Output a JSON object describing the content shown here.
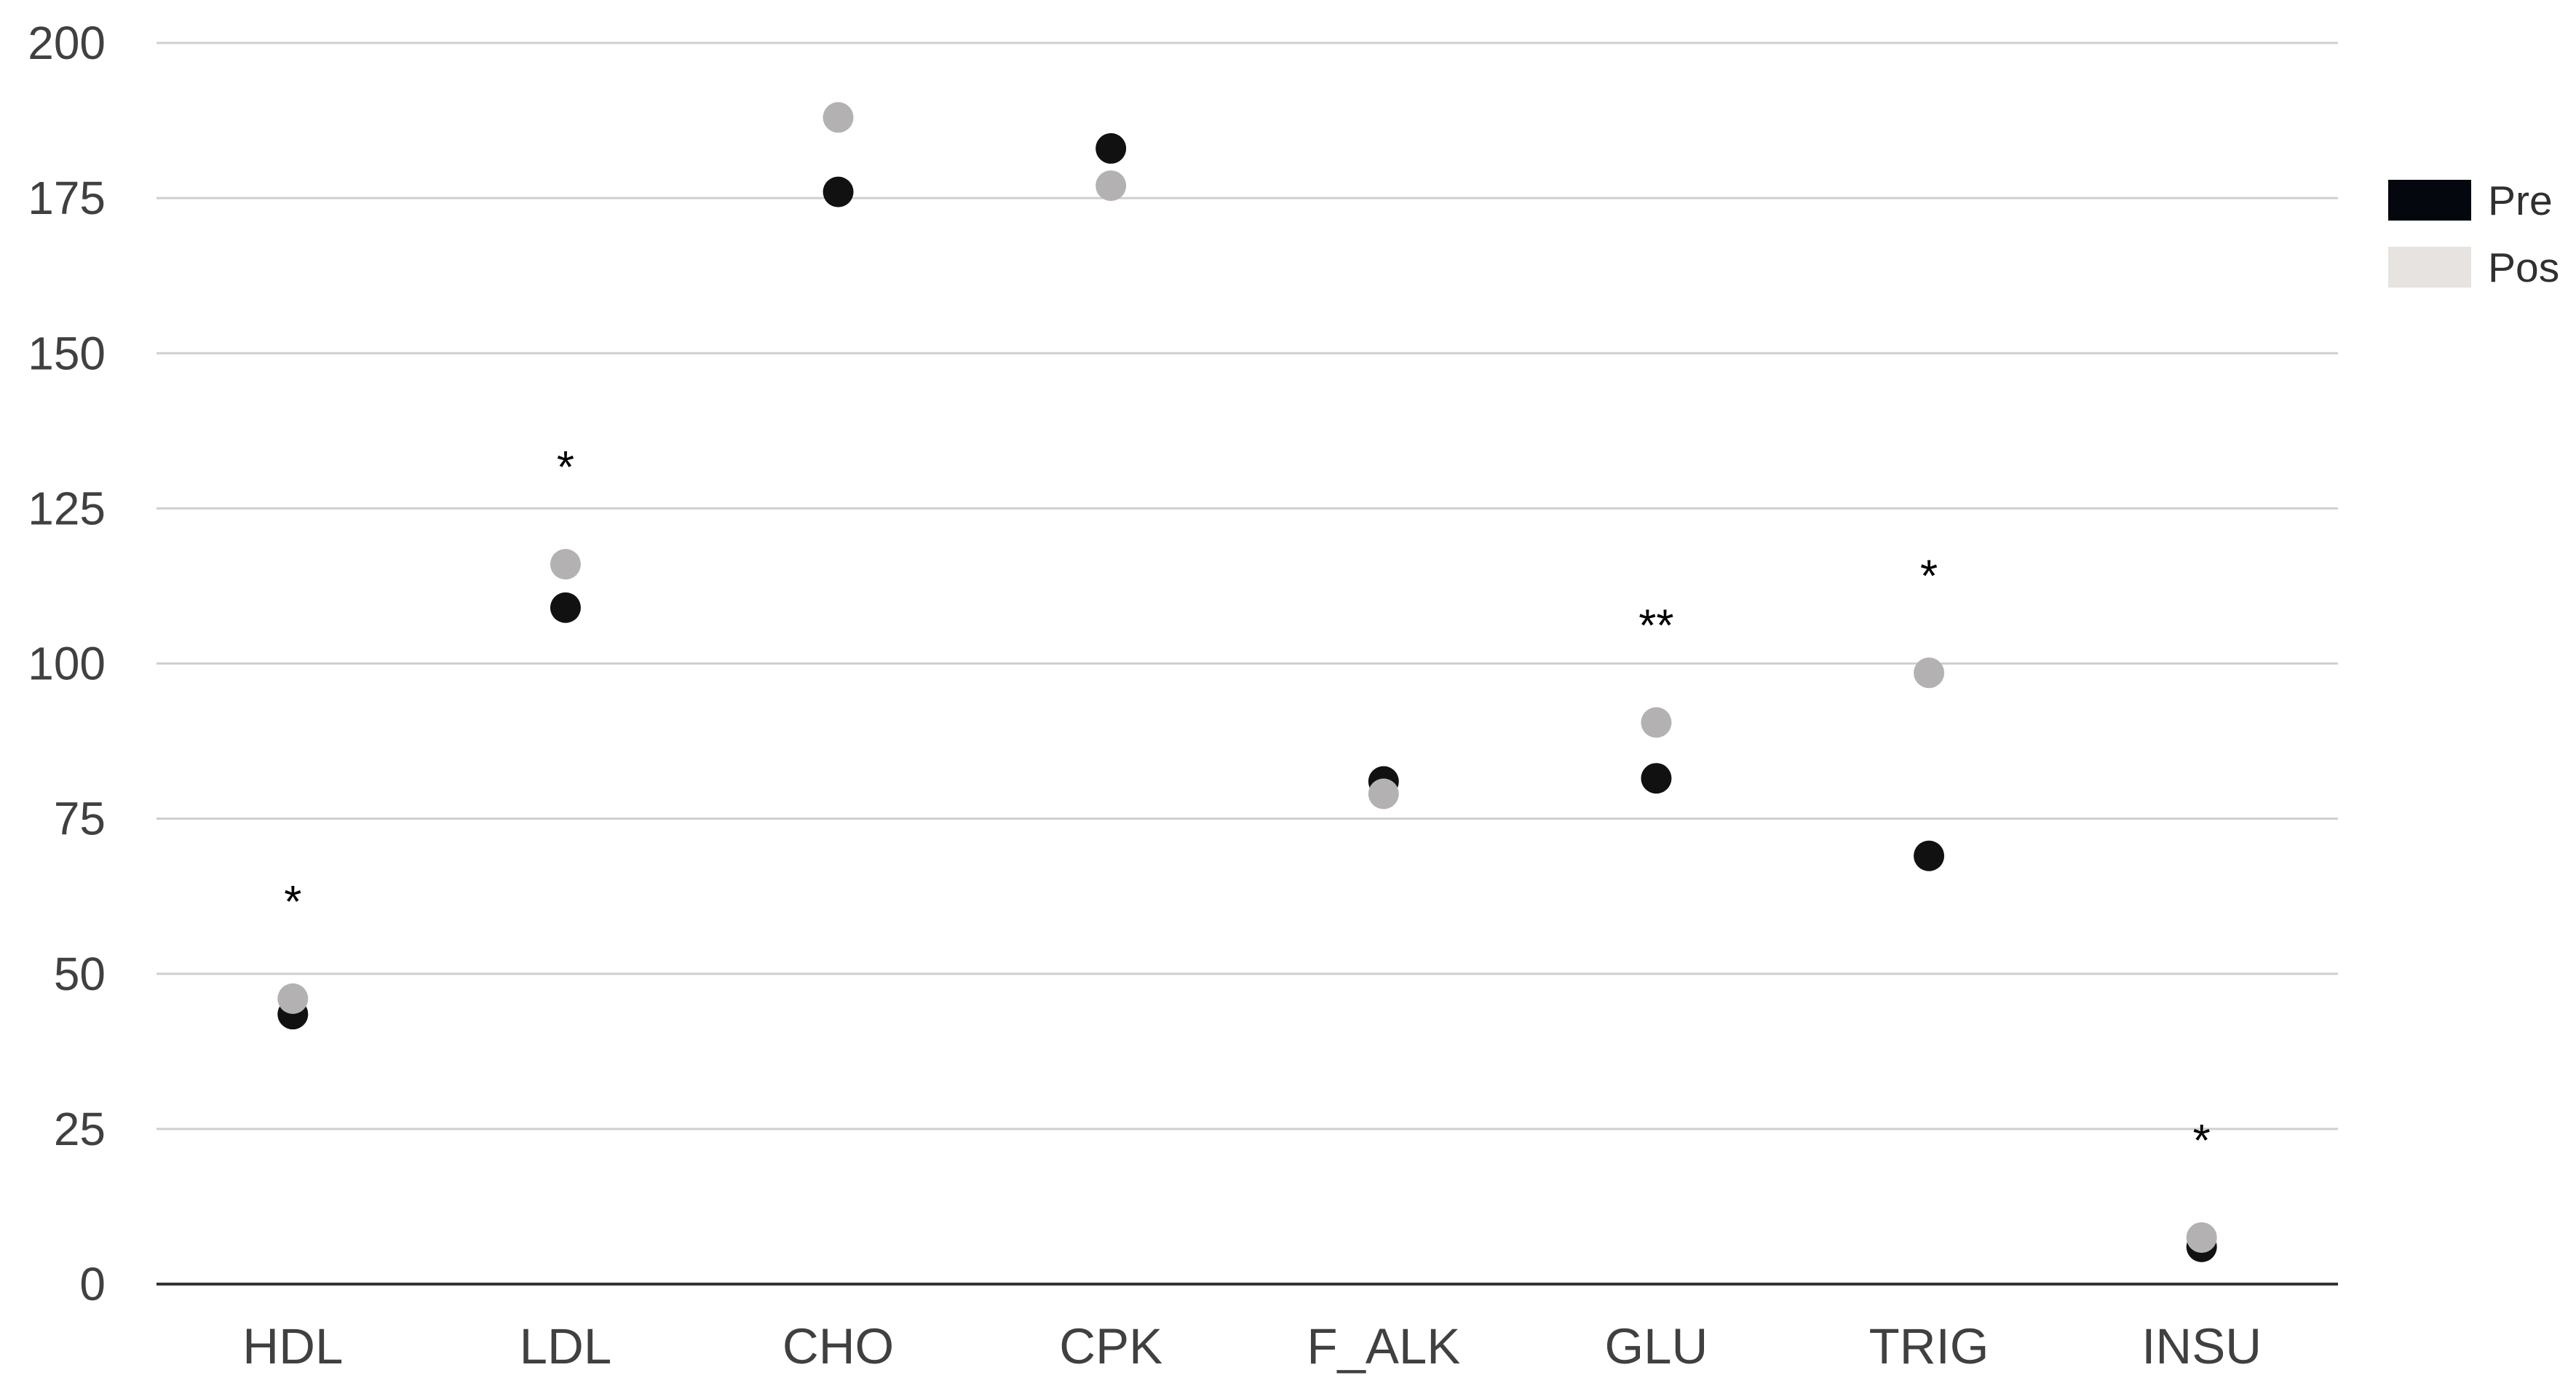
{
  "chart_data": {
    "type": "scatter",
    "categories": [
      "HDL",
      "LDL",
      "CHO",
      "CPK",
      "F_ALK",
      "GLU",
      "TRIG",
      "INSU"
    ],
    "series": [
      {
        "name": "Pre",
        "color": "#111111",
        "legend_color": "#05070f",
        "values": [
          43.5,
          109,
          176,
          183,
          81,
          81.5,
          69,
          6
        ]
      },
      {
        "name": "Pos",
        "color": "#b3b1b1",
        "legend_color": "#e6e3e0",
        "values": [
          46,
          116,
          188,
          177,
          79,
          90.5,
          98.5,
          7.5
        ]
      }
    ],
    "significance": [
      "*",
      "*",
      "",
      "",
      "",
      "**",
      "*",
      "*"
    ],
    "ylim": [
      0,
      200
    ],
    "yticks": [
      0,
      25,
      50,
      75,
      100,
      125,
      150,
      175,
      200
    ],
    "grid": true,
    "legend_position": "right",
    "xlabel": "",
    "ylabel": "",
    "title": ""
  }
}
